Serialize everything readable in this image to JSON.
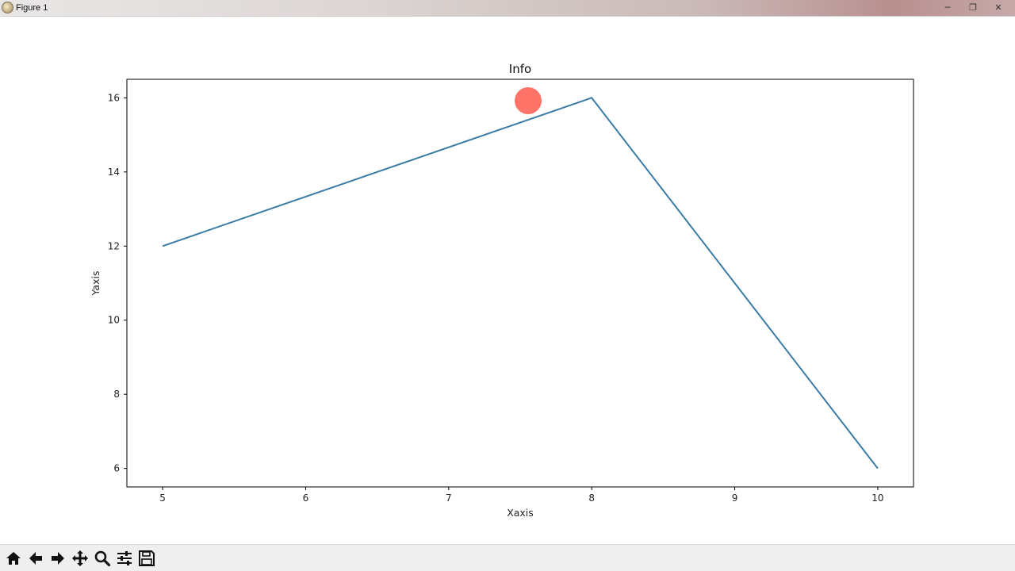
{
  "window": {
    "title": "Figure 1",
    "buttons": {
      "minimize": "─",
      "restore": "❐",
      "close": "✕"
    }
  },
  "chart_data": {
    "type": "line",
    "title": "Info",
    "xlabel": "Xaxis",
    "ylabel": "Yaxis",
    "x": [
      5,
      8,
      10
    ],
    "series": [
      {
        "values": [
          12,
          16,
          6
        ],
        "color": "#3a7ca5"
      }
    ],
    "xlim": [
      4.75,
      10.25
    ],
    "ylim": [
      5.5,
      16.5
    ],
    "xticks": [
      5,
      6,
      7,
      8,
      9,
      10
    ],
    "yticks": [
      6,
      8,
      10,
      12,
      14,
      16
    ],
    "grid": false,
    "legend": "none"
  },
  "cursor_marker": {
    "color": "#ff5a4e"
  },
  "toolbar": {
    "items": [
      {
        "name": "home-button",
        "icon": "home-icon"
      },
      {
        "name": "back-button",
        "icon": "arrow-left-icon"
      },
      {
        "name": "forward-button",
        "icon": "arrow-right-icon"
      },
      {
        "name": "pan-button",
        "icon": "move-icon"
      },
      {
        "name": "zoom-button",
        "icon": "magnifier-icon"
      },
      {
        "name": "subplots-button",
        "icon": "sliders-icon"
      },
      {
        "name": "save-button",
        "icon": "floppy-disk-icon"
      }
    ]
  }
}
